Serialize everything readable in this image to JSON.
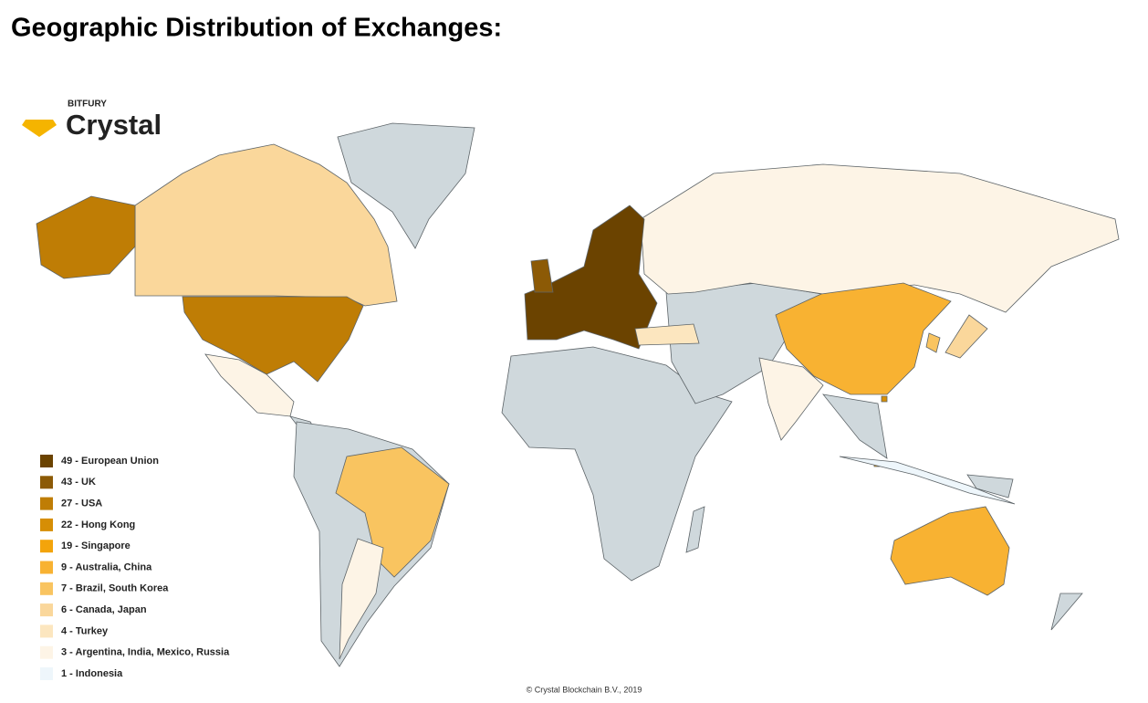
{
  "header": {
    "title": "Geographic Distribution of Exchanges:"
  },
  "logo": {
    "brand": "BITFURY",
    "name": "Crystal"
  },
  "legend": [
    {
      "label": "49 - European Union",
      "color": "#6b4300"
    },
    {
      "label": "43 - UK",
      "color": "#8c5a06"
    },
    {
      "label": "27 - USA",
      "color": "#bf7d05"
    },
    {
      "label": "22 - Hong Kong",
      "color": "#d68e05"
    },
    {
      "label": "19 - Singapore",
      "color": "#f3a40b"
    },
    {
      "label": "9 - Australia, China",
      "color": "#f8b232"
    },
    {
      "label": "7 - Brazil, South Korea",
      "color": "#f9c460"
    },
    {
      "label": "6 - Canada, Japan",
      "color": "#fad79b"
    },
    {
      "label": "4 - Turkey",
      "color": "#fce6bf"
    },
    {
      "label": "3 - Argentina, India, Mexico, Russia",
      "color": "#fdf4e6"
    },
    {
      "label": "1 - Indonesia",
      "color": "#eef6fb"
    }
  ],
  "footer": {
    "copyright": "© Crystal Blockchain B.V., 2019"
  }
}
